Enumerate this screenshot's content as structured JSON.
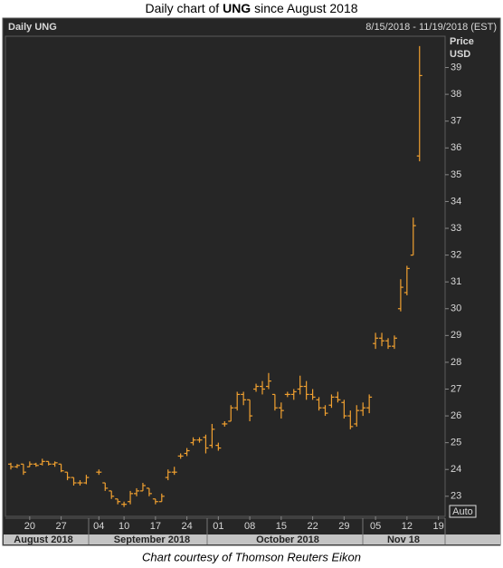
{
  "chart_data": {
    "type": "ohlc",
    "title": {
      "before": "Daily chart of",
      "ticker": "UNG",
      "after": "since August 2018"
    },
    "header_left": "Daily UNG",
    "header_right": "8/15/2018 - 11/19/2018 (EST)",
    "y_label": "Price",
    "y_unit": "USD",
    "button": "Auto",
    "categories": [
      null,
      null,
      null,
      "20",
      null,
      null,
      null,
      null,
      "27",
      null,
      null,
      null,
      null,
      null,
      "04",
      null,
      null,
      null,
      "10",
      null,
      null,
      null,
      null,
      "17",
      null,
      null,
      null,
      null,
      "24",
      null,
      null,
      null,
      null,
      "01",
      null,
      null,
      null,
      null,
      "08",
      null,
      null,
      null,
      null,
      "15",
      null,
      null,
      null,
      null,
      "22",
      null,
      null,
      null,
      null,
      "29",
      null,
      null,
      null,
      null,
      "05",
      null,
      null,
      null,
      null,
      "12",
      null,
      null,
      null,
      null,
      "19"
    ],
    "month_labels": [
      "August 2018",
      "September 2018",
      "October 2018",
      "Nov 18"
    ],
    "color": "#f0a030",
    "series": {
      "open": [
        24.2,
        24.1,
        24.2,
        24.1,
        24.2,
        24.2,
        24.3,
        24.2,
        24.2,
        23.9,
        23.7,
        23.5,
        23.5,
        null,
        23.9,
        23.5,
        23.2,
        22.9,
        22.7,
        22.8,
        23.1,
        23.2,
        23.3,
        22.9,
        22.8,
        23.7,
        23.9,
        24.5,
        24.6,
        25.0,
        25.1,
        25.2,
        24.9,
        24.9,
        25.7,
        25.8,
        26.3,
        26.8,
        26.6,
        27.0,
        27.1,
        27.1,
        26.8,
        26.3,
        26.8,
        26.8,
        27.0,
        27.1,
        26.8,
        26.6,
        26.3,
        26.4,
        26.7,
        26.5,
        26.0,
        25.7,
        26.2,
        26.3,
        28.7,
        28.9,
        28.8,
        28.6,
        30.0,
        30.6,
        32.0,
        35.7,
        null,
        null,
        null
      ],
      "high": [
        24.25,
        24.2,
        24.2,
        24.3,
        24.25,
        24.4,
        24.3,
        24.3,
        24.2,
        23.9,
        23.7,
        23.6,
        23.8,
        null,
        24.0,
        23.5,
        23.2,
        22.9,
        22.8,
        23.2,
        23.3,
        23.5,
        23.3,
        22.9,
        23.1,
        24.0,
        24.1,
        24.6,
        24.8,
        25.2,
        25.2,
        25.3,
        25.7,
        25.0,
        25.8,
        26.4,
        26.9,
        26.9,
        26.6,
        27.2,
        27.3,
        27.6,
        26.8,
        26.5,
        26.9,
        27.0,
        27.5,
        27.3,
        27.0,
        26.7,
        26.4,
        26.8,
        26.9,
        26.6,
        26.2,
        26.4,
        26.5,
        26.8,
        29.1,
        29.1,
        28.9,
        29.0,
        31.1,
        31.6,
        33.4,
        39.8,
        null,
        null,
        null
      ],
      "low": [
        24.0,
        24.05,
        23.8,
        24.1,
        24.1,
        24.15,
        24.15,
        24.1,
        23.9,
        23.6,
        23.4,
        23.4,
        23.45,
        null,
        23.8,
        23.2,
        22.9,
        22.7,
        22.6,
        22.7,
        23.0,
        23.2,
        23.0,
        22.7,
        22.8,
        23.6,
        23.8,
        24.4,
        24.5,
        24.9,
        25.0,
        24.6,
        24.8,
        24.7,
        25.6,
        25.8,
        26.2,
        26.4,
        25.8,
        26.9,
        26.8,
        27.0,
        26.2,
        25.9,
        26.7,
        26.6,
        26.8,
        26.6,
        26.6,
        26.2,
        26.0,
        26.3,
        26.5,
        25.9,
        25.5,
        25.6,
        26.0,
        26.1,
        28.5,
        28.6,
        28.5,
        28.5,
        29.9,
        30.5,
        32.0,
        35.5,
        null,
        null,
        null
      ],
      "close": [
        24.1,
        24.15,
        23.9,
        24.2,
        24.15,
        24.3,
        24.2,
        24.25,
        23.95,
        23.7,
        23.5,
        23.5,
        23.7,
        null,
        23.9,
        23.3,
        23.0,
        22.8,
        22.7,
        23.1,
        23.2,
        23.4,
        23.1,
        22.8,
        23.0,
        23.9,
        23.9,
        24.5,
        24.7,
        25.1,
        25.1,
        24.8,
        25.5,
        24.8,
        25.7,
        26.3,
        26.8,
        26.6,
        26.0,
        27.1,
        27.0,
        27.3,
        26.3,
        26.2,
        26.8,
        26.9,
        27.1,
        26.8,
        26.7,
        26.3,
        26.1,
        26.7,
        26.6,
        26.0,
        25.6,
        26.2,
        26.3,
        26.7,
        28.9,
        28.8,
        28.6,
        28.9,
        30.8,
        31.5,
        33.1,
        38.7,
        null,
        null,
        null
      ]
    },
    "ylim": [
      22.25,
      40.1
    ],
    "yticks": [
      23,
      24,
      25,
      26,
      27,
      28,
      29,
      30,
      31,
      32,
      33,
      34,
      35,
      36,
      37,
      38,
      39
    ]
  },
  "caption": "Chart courtesy of Thomson Reuters Eikon"
}
